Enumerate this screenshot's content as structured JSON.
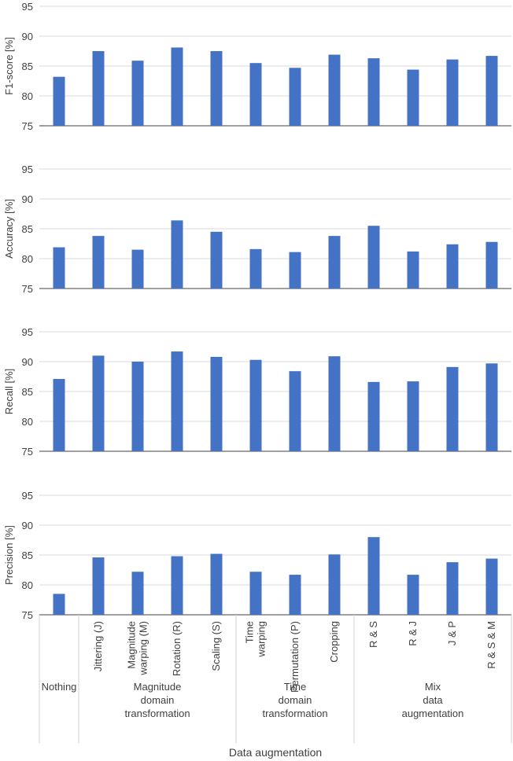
{
  "chart_data": [
    {
      "type": "bar",
      "ylabel": "F1-score [%]",
      "color": "#4472c4",
      "ylim": [
        75,
        95
      ],
      "yticks": [
        75,
        80,
        85,
        90,
        95
      ],
      "grid": true,
      "values": [
        83.2,
        87.5,
        85.9,
        88.1,
        87.5,
        85.5,
        84.7,
        86.9,
        86.3,
        84.4,
        86.1,
        86.7
      ]
    },
    {
      "type": "bar",
      "ylabel": "Accuracy [%]",
      "color": "#4472c4",
      "ylim": [
        75,
        95
      ],
      "yticks": [
        75,
        80,
        85,
        90,
        95
      ],
      "grid": true,
      "values": [
        81.9,
        83.8,
        81.5,
        86.4,
        84.5,
        81.6,
        81.1,
        83.8,
        85.5,
        81.2,
        82.4,
        82.8
      ]
    },
    {
      "type": "bar",
      "ylabel": "Recall [%]",
      "color": "#4472c4",
      "ylim": [
        75,
        95
      ],
      "yticks": [
        75,
        80,
        85,
        90,
        95
      ],
      "grid": true,
      "values": [
        87.1,
        91.0,
        90.0,
        91.7,
        90.8,
        90.3,
        88.4,
        90.9,
        86.6,
        86.7,
        89.1,
        89.7
      ]
    },
    {
      "type": "bar",
      "ylabel": "Precision [%]",
      "color": "#4472c4",
      "ylim": [
        75,
        95
      ],
      "yticks": [
        75,
        80,
        85,
        90,
        95
      ],
      "grid": true,
      "values": [
        78.5,
        84.6,
        82.2,
        84.8,
        85.2,
        82.2,
        81.7,
        85.1,
        88.0,
        81.7,
        83.8,
        84.4
      ],
      "xlabel": "Data augmentation",
      "groups": [
        {
          "label": "Nothing",
          "categories": [
            null
          ]
        },
        {
          "label": "Magnitude\ndomain\ntransformation",
          "categories": [
            "Jittering (J)",
            "Magnitude\nwarping (M)",
            "Rotation (R)",
            "Scaling (S)"
          ]
        },
        {
          "label": "Time\ndomain\ntransformation",
          "categories": [
            "Time\nwarping",
            "Permutation (P)",
            "Cropping"
          ]
        },
        {
          "label": "Mix\ndata\naugmentation",
          "categories": [
            "R & S",
            "R & J",
            "J & P",
            "R & S & M"
          ]
        }
      ]
    }
  ]
}
